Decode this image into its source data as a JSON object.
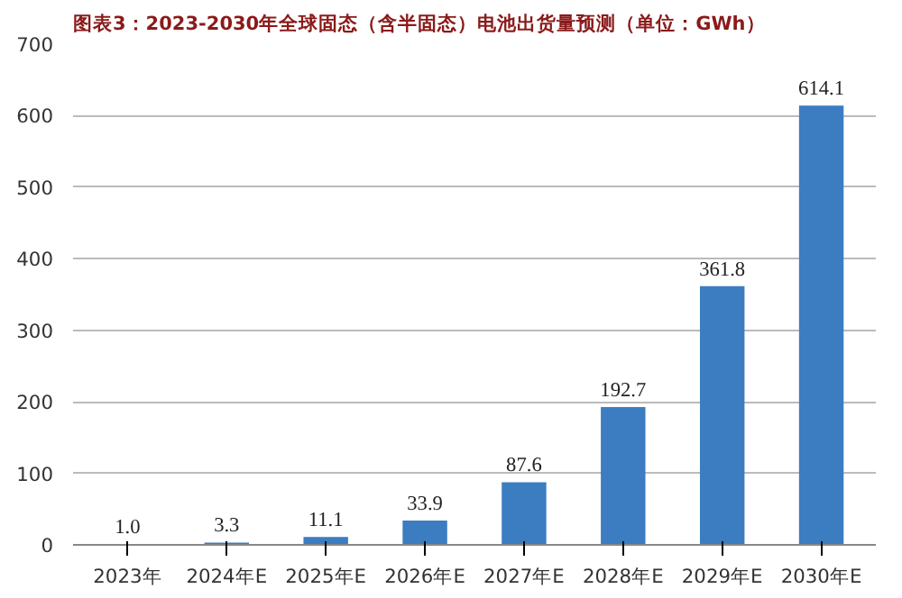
{
  "chart_data": {
    "type": "bar",
    "title": "图表3：2023-2030年全球固态（含半固态）电池出货量预测（单位：GWh）",
    "categories": [
      "2023年",
      "2024年E",
      "2025年E",
      "2026年E",
      "2027年E",
      "2028年E",
      "2029年E",
      "2030年E"
    ],
    "values": [
      1.0,
      3.3,
      11.1,
      33.9,
      87.6,
      192.7,
      361.8,
      614.1
    ],
    "value_labels": [
      "1.0",
      "3.3",
      "11.1",
      "33.9",
      "87.6",
      "192.7",
      "361.8",
      "614.1"
    ],
    "color": "#3b7dc0",
    "ylim": [
      0,
      700
    ],
    "yticks": [
      0,
      100,
      200,
      300,
      400,
      500,
      600,
      700
    ],
    "grid": "y"
  }
}
